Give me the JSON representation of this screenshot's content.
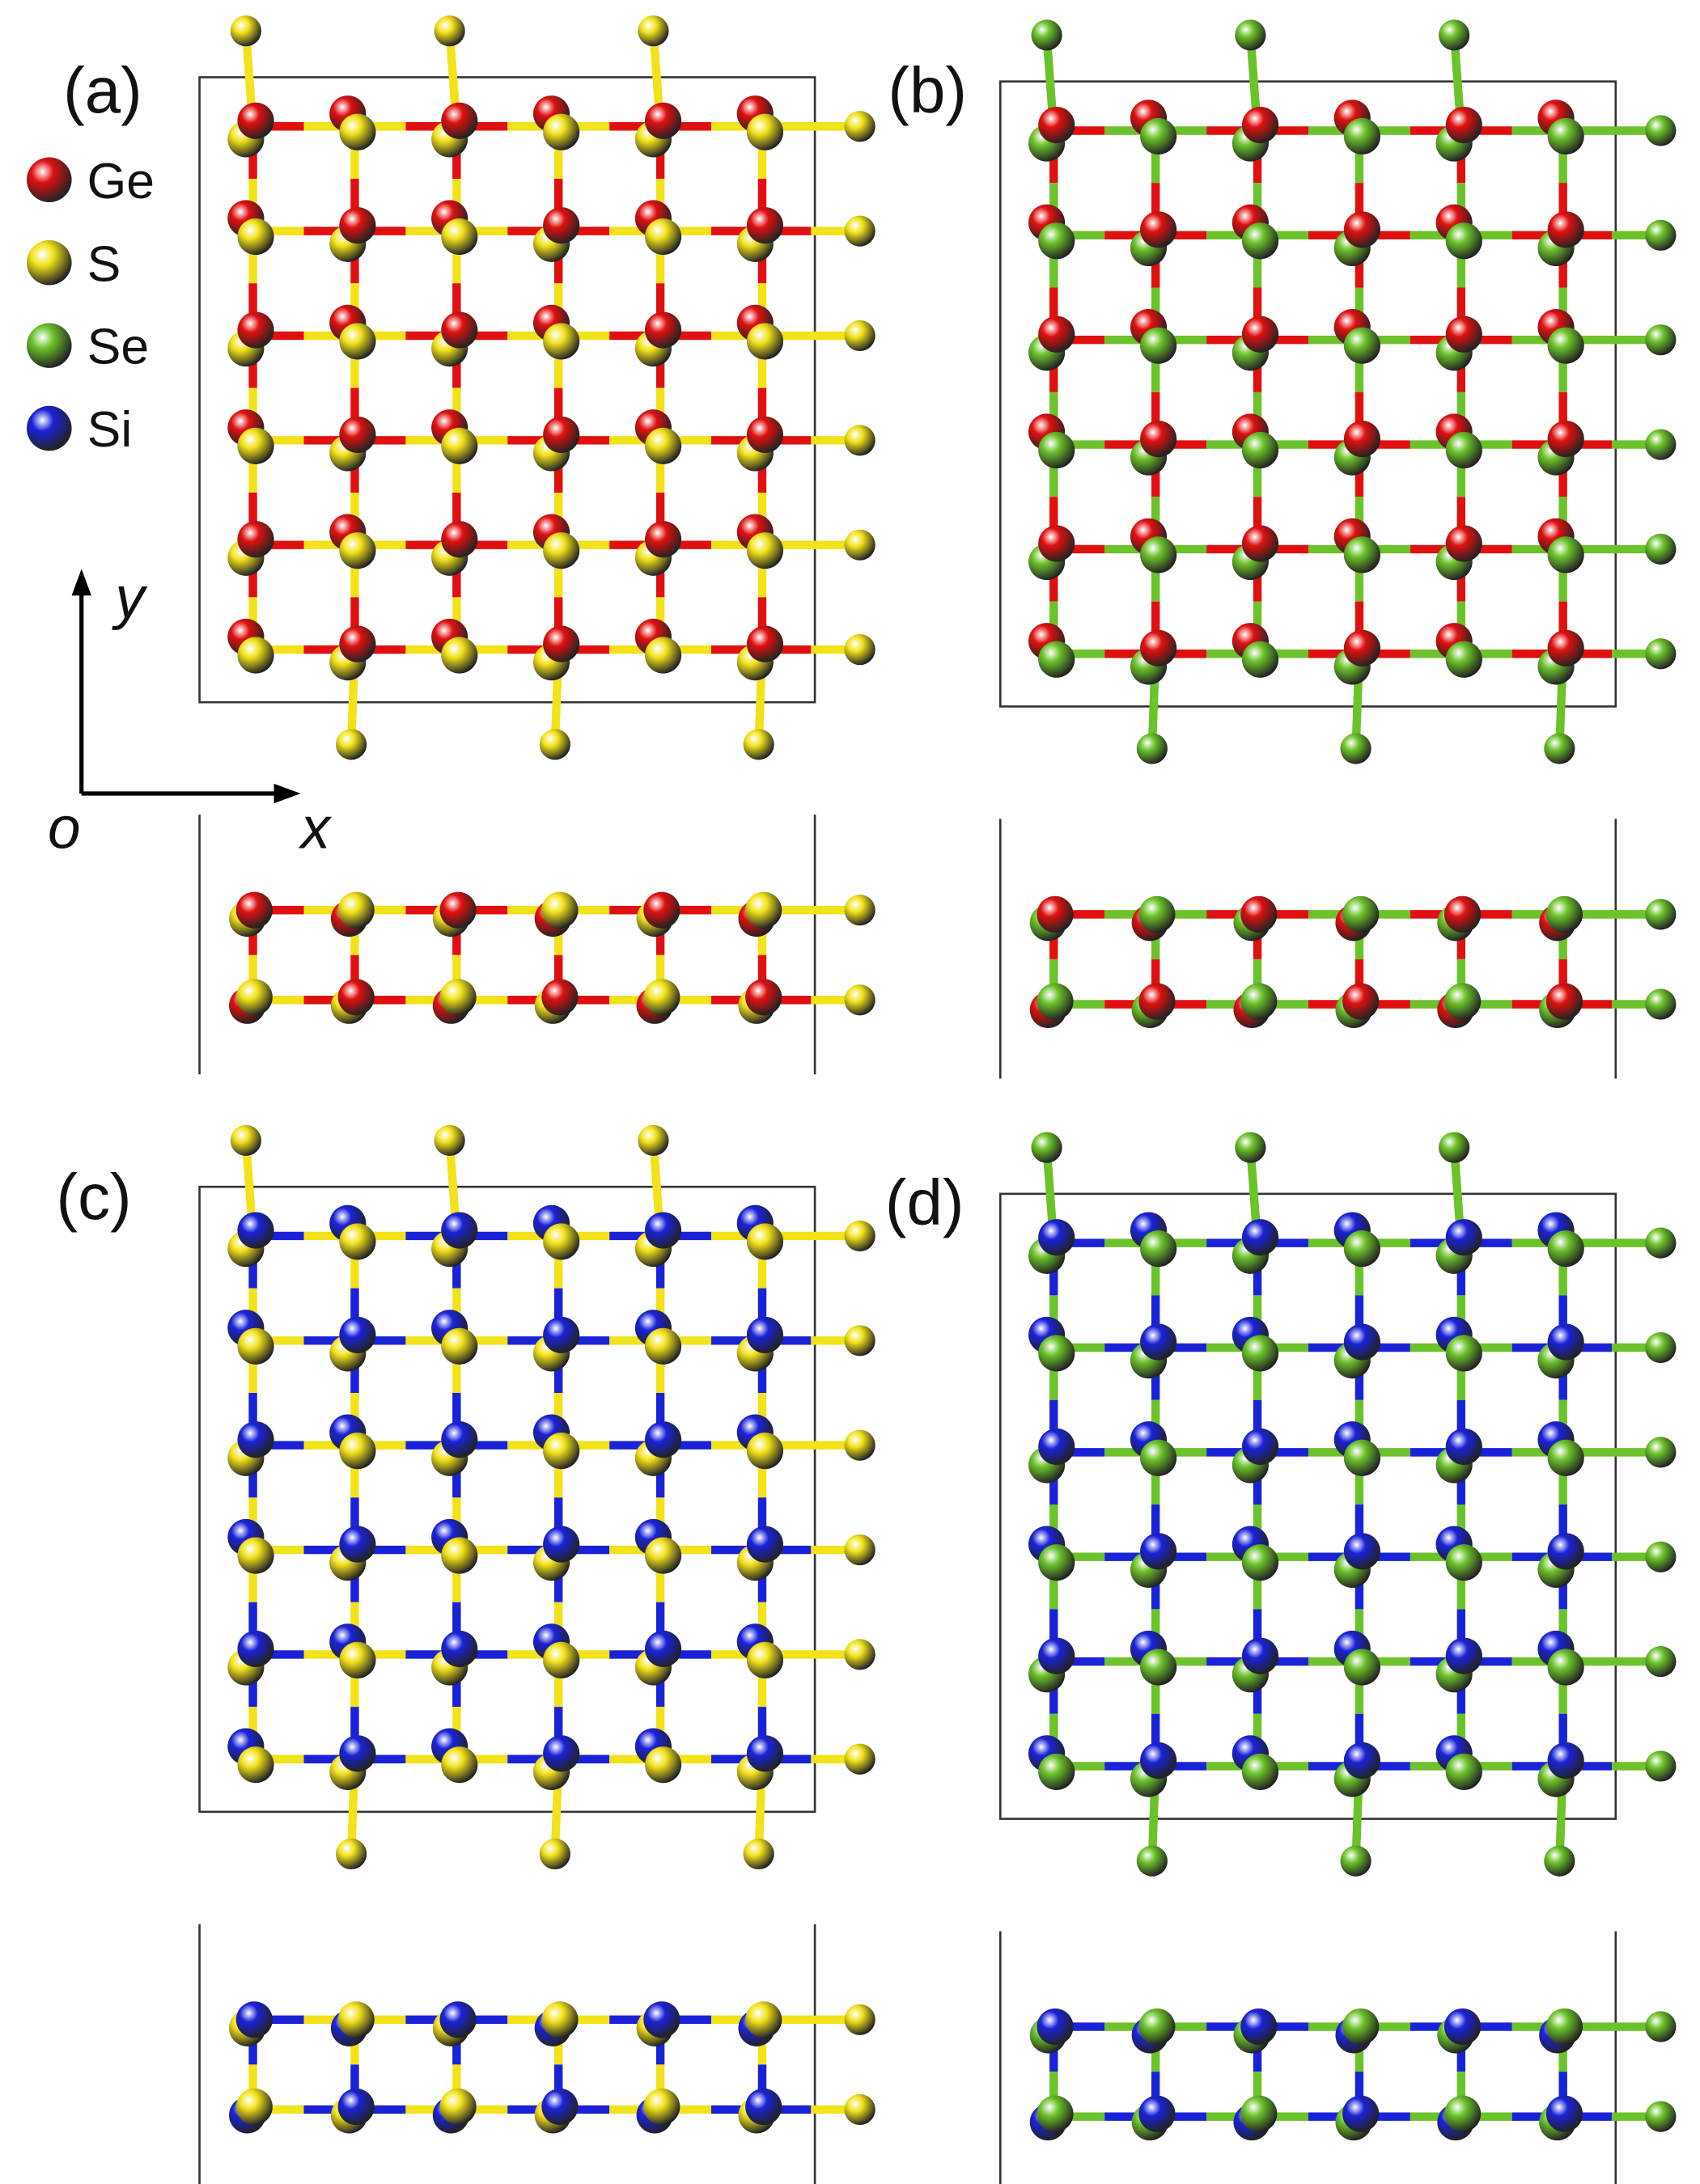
{
  "panels": [
    {
      "label": "(a)"
    },
    {
      "label": "(b)"
    },
    {
      "label": "(c)"
    },
    {
      "label": "(d)"
    }
  ],
  "legend": {
    "items": [
      {
        "label": "Ge",
        "color": "#e01010"
      },
      {
        "label": "S",
        "color": "#f2e21a"
      },
      {
        "label": "Se",
        "color": "#6cc22a"
      },
      {
        "label": "Si",
        "color": "#1a22d8"
      }
    ]
  },
  "axes": {
    "y": "y",
    "x": "x",
    "origin": "o"
  }
}
